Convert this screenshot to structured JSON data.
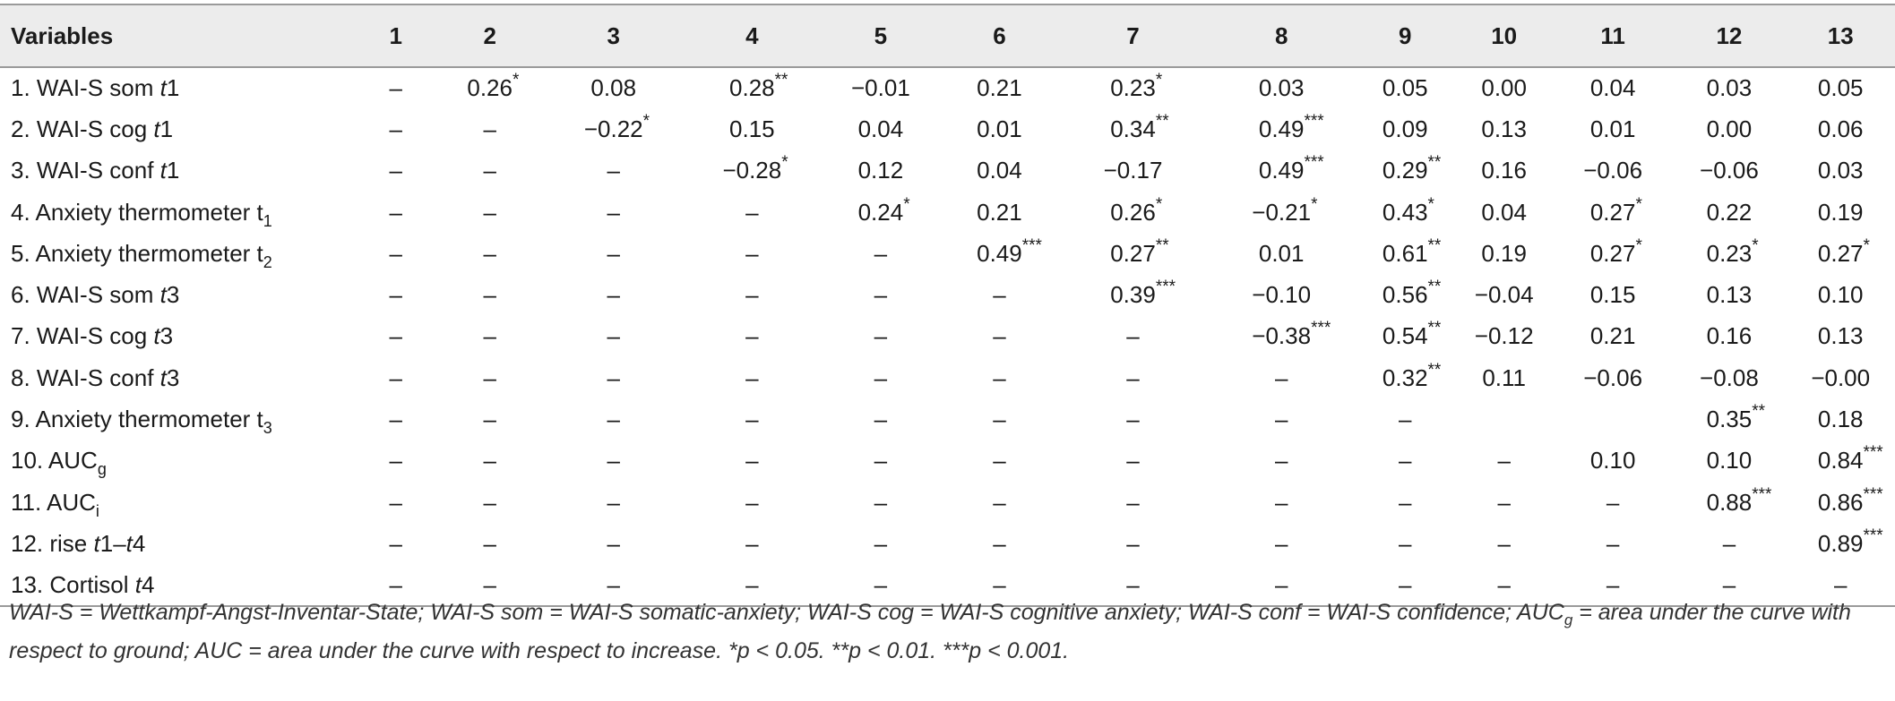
{
  "table": {
    "headers": [
      "Variables",
      "1",
      "2",
      "3",
      "4",
      "5",
      "6",
      "7",
      "8",
      "9",
      "10",
      "11",
      "12",
      "13"
    ],
    "rows": [
      {
        "label": {
          "pre": "1. WAI-S som ",
          "it": "t",
          "post": "1"
        },
        "cells": [
          [
            "–",
            ""
          ],
          [
            "0.26",
            "*"
          ],
          [
            "0.08",
            ""
          ],
          [
            "0.28",
            "**"
          ],
          [
            "−0.01",
            ""
          ],
          [
            "0.21",
            ""
          ],
          [
            "0.23",
            "*"
          ],
          [
            "0.03",
            ""
          ],
          [
            "0.05",
            ""
          ],
          [
            "0.00",
            ""
          ],
          [
            "0.04",
            ""
          ],
          [
            "0.03",
            ""
          ],
          [
            "0.05",
            ""
          ]
        ]
      },
      {
        "label": {
          "pre": "2. WAI-S cog ",
          "it": "t",
          "post": "1"
        },
        "cells": [
          [
            "–",
            ""
          ],
          [
            "–",
            ""
          ],
          [
            "−0.22",
            "*"
          ],
          [
            "0.15",
            ""
          ],
          [
            "0.04",
            ""
          ],
          [
            "0.01",
            ""
          ],
          [
            "0.34",
            "**"
          ],
          [
            "0.49",
            "***"
          ],
          [
            "0.09",
            ""
          ],
          [
            "0.13",
            ""
          ],
          [
            "0.01",
            ""
          ],
          [
            "0.00",
            ""
          ],
          [
            "0.06",
            ""
          ]
        ]
      },
      {
        "label": {
          "pre": "3. WAI-S conf ",
          "it": "t",
          "post": "1"
        },
        "cells": [
          [
            "–",
            ""
          ],
          [
            "–",
            ""
          ],
          [
            "–",
            ""
          ],
          [
            "−0.28",
            "*"
          ],
          [
            "0.12",
            ""
          ],
          [
            "0.04",
            ""
          ],
          [
            "−0.17",
            ""
          ],
          [
            "0.49",
            "***"
          ],
          [
            "0.29",
            "**"
          ],
          [
            "0.16",
            ""
          ],
          [
            "−0.06",
            ""
          ],
          [
            "−0.06",
            ""
          ],
          [
            "0.03",
            ""
          ]
        ]
      },
      {
        "label": {
          "pre": "4. Anxiety thermometer t",
          "sub": "1"
        },
        "cells": [
          [
            "–",
            ""
          ],
          [
            "–",
            ""
          ],
          [
            "–",
            ""
          ],
          [
            "–",
            ""
          ],
          [
            "0.24",
            "*"
          ],
          [
            "0.21",
            ""
          ],
          [
            "0.26",
            "*"
          ],
          [
            "−0.21",
            "*"
          ],
          [
            "0.43",
            "*"
          ],
          [
            "0.04",
            ""
          ],
          [
            "0.27",
            "*"
          ],
          [
            "0.22",
            ""
          ],
          [
            "0.19",
            ""
          ]
        ]
      },
      {
        "label": {
          "pre": "5. Anxiety thermometer t",
          "sub": "2"
        },
        "cells": [
          [
            "–",
            ""
          ],
          [
            "–",
            ""
          ],
          [
            "–",
            ""
          ],
          [
            "–",
            ""
          ],
          [
            "–",
            ""
          ],
          [
            "0.49",
            "***"
          ],
          [
            "0.27",
            "**"
          ],
          [
            "0.01",
            ""
          ],
          [
            "0.61",
            "**"
          ],
          [
            "0.19",
            ""
          ],
          [
            "0.27",
            "*"
          ],
          [
            "0.23",
            "*"
          ],
          [
            "0.27",
            "*"
          ]
        ]
      },
      {
        "label": {
          "pre": "6. WAI-S som ",
          "it": "t",
          "post": "3"
        },
        "cells": [
          [
            "–",
            ""
          ],
          [
            "–",
            ""
          ],
          [
            "–",
            ""
          ],
          [
            "–",
            ""
          ],
          [
            "–",
            ""
          ],
          [
            "–",
            ""
          ],
          [
            "0.39",
            "***"
          ],
          [
            "−0.10",
            ""
          ],
          [
            "0.56",
            "**"
          ],
          [
            "−0.04",
            ""
          ],
          [
            "0.15",
            ""
          ],
          [
            "0.13",
            ""
          ],
          [
            "0.10",
            ""
          ]
        ]
      },
      {
        "label": {
          "pre": "7. WAI-S cog ",
          "it": "t",
          "post": "3"
        },
        "cells": [
          [
            "–",
            ""
          ],
          [
            "–",
            ""
          ],
          [
            "–",
            ""
          ],
          [
            "–",
            ""
          ],
          [
            "–",
            ""
          ],
          [
            "–",
            ""
          ],
          [
            "–",
            ""
          ],
          [
            "−0.38",
            "***"
          ],
          [
            "0.54",
            "**"
          ],
          [
            "−0.12",
            ""
          ],
          [
            "0.21",
            ""
          ],
          [
            "0.16",
            ""
          ],
          [
            "0.13",
            ""
          ]
        ]
      },
      {
        "label": {
          "pre": "8. WAI-S conf ",
          "it": "t",
          "post": "3"
        },
        "cells": [
          [
            "–",
            ""
          ],
          [
            "–",
            ""
          ],
          [
            "–",
            ""
          ],
          [
            "–",
            ""
          ],
          [
            "–",
            ""
          ],
          [
            "–",
            ""
          ],
          [
            "–",
            ""
          ],
          [
            "–",
            ""
          ],
          [
            "0.32",
            "**"
          ],
          [
            "0.11",
            ""
          ],
          [
            "−0.06",
            ""
          ],
          [
            "−0.08",
            ""
          ],
          [
            "−0.00",
            ""
          ]
        ]
      },
      {
        "label": {
          "pre": "9. Anxiety thermometer t",
          "sub": "3"
        },
        "cells": [
          [
            "–",
            ""
          ],
          [
            "–",
            ""
          ],
          [
            "–",
            ""
          ],
          [
            "–",
            ""
          ],
          [
            "–",
            ""
          ],
          [
            "–",
            ""
          ],
          [
            "–",
            ""
          ],
          [
            "–",
            ""
          ],
          [
            "–",
            ""
          ],
          [
            "",
            ""
          ],
          [
            "",
            ""
          ],
          [
            "0.35",
            "**"
          ],
          [
            "0.18",
            ""
          ]
        ]
      },
      {
        "label": {
          "pre": "10. AUC",
          "sub": "g"
        },
        "cells": [
          [
            "–",
            ""
          ],
          [
            "–",
            ""
          ],
          [
            "–",
            ""
          ],
          [
            "–",
            ""
          ],
          [
            "–",
            ""
          ],
          [
            "–",
            ""
          ],
          [
            "–",
            ""
          ],
          [
            "–",
            ""
          ],
          [
            "–",
            ""
          ],
          [
            "–",
            ""
          ],
          [
            "0.10",
            ""
          ],
          [
            "0.10",
            ""
          ],
          [
            "0.84",
            "***"
          ]
        ]
      },
      {
        "label": {
          "pre": "11. AUC",
          "sub": "i"
        },
        "cells": [
          [
            "–",
            ""
          ],
          [
            "–",
            ""
          ],
          [
            "–",
            ""
          ],
          [
            "–",
            ""
          ],
          [
            "–",
            ""
          ],
          [
            "–",
            ""
          ],
          [
            "–",
            ""
          ],
          [
            "–",
            ""
          ],
          [
            "–",
            ""
          ],
          [
            "–",
            ""
          ],
          [
            "–",
            ""
          ],
          [
            "0.88",
            "***"
          ],
          [
            "0.86",
            "***"
          ]
        ]
      },
      {
        "label": {
          "pre": "12. rise ",
          "it": "t",
          "post": "1–",
          "it2": "t",
          "post2": "4"
        },
        "cells": [
          [
            "–",
            ""
          ],
          [
            "–",
            ""
          ],
          [
            "–",
            ""
          ],
          [
            "–",
            ""
          ],
          [
            "–",
            ""
          ],
          [
            "–",
            ""
          ],
          [
            "–",
            ""
          ],
          [
            "–",
            ""
          ],
          [
            "–",
            ""
          ],
          [
            "–",
            ""
          ],
          [
            "–",
            ""
          ],
          [
            "–",
            ""
          ],
          [
            "0.89",
            "***"
          ]
        ]
      },
      {
        "label": {
          "pre": "13. Cortisol ",
          "it": "t",
          "post": "4"
        },
        "cells": [
          [
            "–",
            ""
          ],
          [
            "–",
            ""
          ],
          [
            "–",
            ""
          ],
          [
            "–",
            ""
          ],
          [
            "–",
            ""
          ],
          [
            "–",
            ""
          ],
          [
            "–",
            ""
          ],
          [
            "–",
            ""
          ],
          [
            "–",
            ""
          ],
          [
            "–",
            ""
          ],
          [
            "–",
            ""
          ],
          [
            "–",
            ""
          ],
          [
            "–",
            ""
          ]
        ]
      }
    ]
  },
  "footnote": {
    "part1": "WAI-S = Wettkampf-Angst-Inventar-State; WAI-S som = WAI-S somatic-anxiety; WAI-S cog = WAI-S cognitive anxiety; WAI-S conf = WAI-S confidence; AUC",
    "sub": "g",
    "part2": " = area under the curve with respect to ground; AUC = area under the curve with respect to increase. *p < 0.05. **p < 0.01. ***p < 0.001."
  }
}
